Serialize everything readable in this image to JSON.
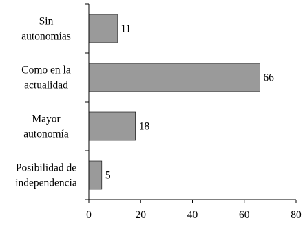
{
  "chart_data": {
    "type": "bar",
    "orientation": "horizontal",
    "categories": [
      [
        "Sin",
        "autonomías"
      ],
      [
        "Como en la",
        "actualidad"
      ],
      [
        "Mayor",
        "autonomía"
      ],
      [
        "Posibilidad de",
        "independencia"
      ]
    ],
    "values": [
      11,
      66,
      18,
      5
    ],
    "data_labels": [
      "11",
      "66",
      "18",
      "5"
    ],
    "xlim": [
      0,
      80
    ],
    "xticks": [
      0,
      20,
      40,
      60,
      80
    ],
    "xtick_labels": [
      "0",
      "20",
      "40",
      "60",
      "80"
    ],
    "grid": false,
    "legend": "none",
    "bar_color": "#9a9a9a",
    "bar_edge_color": "#000000",
    "title": "",
    "xlabel": "",
    "ylabel": ""
  }
}
